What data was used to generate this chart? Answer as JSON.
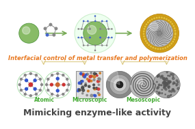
{
  "bg_color": "#ffffff",
  "title_text": "Mimicking enzyme-like activity",
  "title_color": "#444444",
  "title_fontsize": 9.0,
  "subtitle_text": "Interfacial control of metal transfer and polymerization",
  "subtitle_color": "#e87820",
  "subtitle_fontsize": 6.0,
  "label_atomic": "Atomic",
  "label_microscopic": "Microscopic",
  "label_mesoscopic": "Mesoscopic",
  "label_color": "#44aa33",
  "label_fontsize": 5.5,
  "green_color": "#88bb66",
  "green_edge": "#559944",
  "gold_outer": "#ccaa22",
  "gold_inner_rim": "#ddbb44",
  "cage_bg": "#eefff0",
  "cage_edge": "#cceecc",
  "arrow_color": "#77aa55",
  "bracket_color": "#ddcc88",
  "grey_dark": "#444444",
  "grey_mid": "#888888",
  "grey_light": "#cccccc",
  "blue_atom": "#3355cc",
  "red_atom": "#cc3333",
  "white": "#ffffff"
}
